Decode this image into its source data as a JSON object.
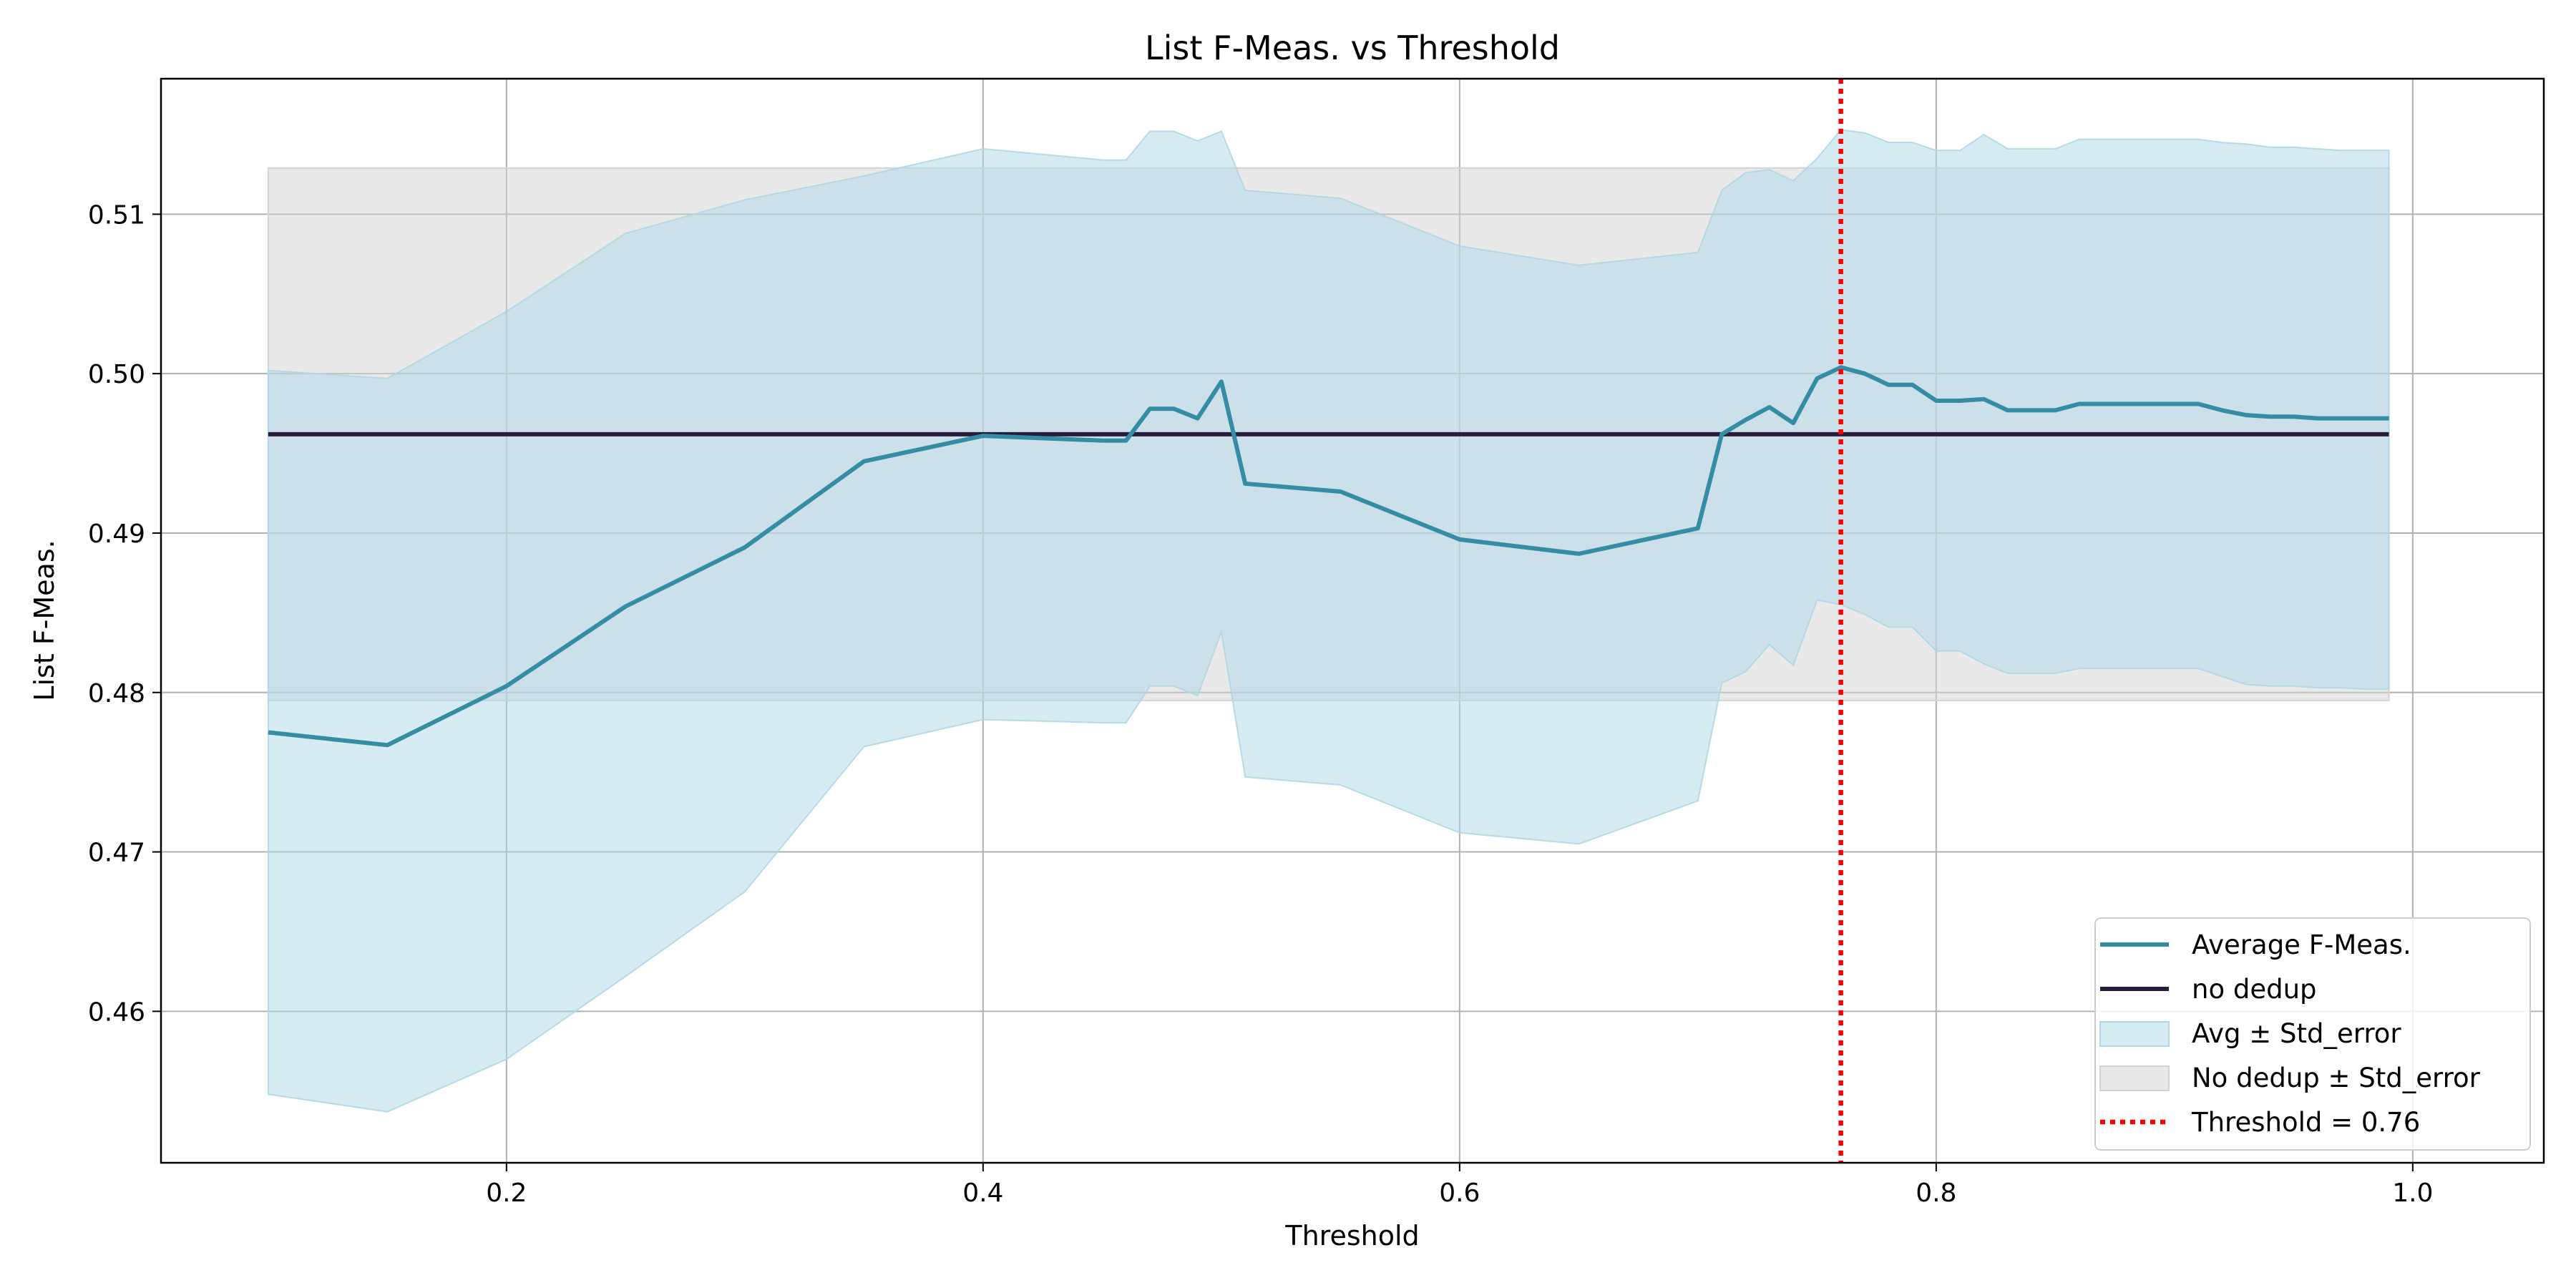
{
  "chart_data": {
    "type": "line",
    "title": "List F-Meas. vs Threshold",
    "xlabel": "Threshold",
    "ylabel": "List F-Meas.",
    "xlim": [
      0.055,
      1.055
    ],
    "ylim": [
      0.4505,
      0.5185
    ],
    "xticks": [
      0.2,
      0.4,
      0.6,
      0.8,
      1.0
    ],
    "xtick_labels": [
      "0.2",
      "0.4",
      "0.6",
      "0.8",
      "1.0"
    ],
    "yticks": [
      0.46,
      0.47,
      0.48,
      0.49,
      0.5,
      0.51
    ],
    "ytick_labels": [
      "0.46",
      "0.47",
      "0.48",
      "0.49",
      "0.50",
      "0.51"
    ],
    "grid": true,
    "legend_position": "lower-right",
    "colors": {
      "average": "#358da4",
      "average_band": "#add8e6",
      "no_dedup": "#281c3d",
      "no_dedup_band": "#d3d3d6",
      "threshold": "#ff0000",
      "grid": "#b0b0b0"
    },
    "x": [
      0.1,
      0.15,
      0.2,
      0.25,
      0.3,
      0.35,
      0.4,
      0.45,
      0.46,
      0.47,
      0.48,
      0.49,
      0.5,
      0.51,
      0.55,
      0.6,
      0.65,
      0.7,
      0.71,
      0.72,
      0.73,
      0.74,
      0.75,
      0.76,
      0.77,
      0.78,
      0.79,
      0.8,
      0.81,
      0.82,
      0.83,
      0.84,
      0.85,
      0.86,
      0.87,
      0.88,
      0.89,
      0.9,
      0.91,
      0.92,
      0.93,
      0.94,
      0.95,
      0.96,
      0.97,
      0.98,
      0.99
    ],
    "series": [
      {
        "name": "Average F-Meas.",
        "values": [
          0.4775,
          0.4767,
          0.4804,
          0.4854,
          0.4891,
          0.4945,
          0.4961,
          0.4958,
          0.4958,
          0.4978,
          0.4978,
          0.4972,
          0.4995,
          0.4931,
          0.4926,
          0.4896,
          0.4887,
          0.4903,
          0.4962,
          0.4971,
          0.4979,
          0.4969,
          0.4997,
          0.5004,
          0.5,
          0.4993,
          0.4993,
          0.4983,
          0.4983,
          0.4984,
          0.4977,
          0.4977,
          0.4977,
          0.4981,
          0.4981,
          0.4981,
          0.4981,
          0.4981,
          0.4981,
          0.4977,
          0.4974,
          0.4973,
          0.4973,
          0.4972,
          0.4972,
          0.4972,
          0.4972
        ],
        "lower": [
          0.4548,
          0.4537,
          0.457,
          0.4622,
          0.4675,
          0.4766,
          0.4783,
          0.4781,
          0.4781,
          0.4804,
          0.4804,
          0.4798,
          0.4838,
          0.4747,
          0.4742,
          0.4712,
          0.4705,
          0.4732,
          0.4806,
          0.4813,
          0.483,
          0.4817,
          0.4858,
          0.4855,
          0.4849,
          0.4841,
          0.4841,
          0.4826,
          0.4826,
          0.4818,
          0.4812,
          0.4812,
          0.4812,
          0.4815,
          0.4815,
          0.4815,
          0.4815,
          0.4815,
          0.4815,
          0.481,
          0.4805,
          0.4804,
          0.4804,
          0.4803,
          0.4803,
          0.4802,
          0.4802
        ],
        "upper": [
          0.5002,
          0.4997,
          0.5039,
          0.5088,
          0.5109,
          0.5124,
          0.5141,
          0.5134,
          0.5134,
          0.5152,
          0.5152,
          0.5146,
          0.5152,
          0.5115,
          0.511,
          0.508,
          0.5068,
          0.5076,
          0.5115,
          0.5126,
          0.5128,
          0.5121,
          0.5135,
          0.5153,
          0.5151,
          0.5145,
          0.5145,
          0.514,
          0.514,
          0.515,
          0.5141,
          0.5141,
          0.5141,
          0.5147,
          0.5147,
          0.5147,
          0.5147,
          0.5147,
          0.5147,
          0.5145,
          0.5144,
          0.5142,
          0.5142,
          0.5141,
          0.514,
          0.514,
          0.514
        ]
      },
      {
        "name": "no dedup",
        "x_range": [
          0.1,
          0.99
        ],
        "value": 0.4962,
        "lower": 0.4795,
        "upper": 0.5129
      }
    ],
    "threshold": 0.76,
    "legend": [
      {
        "key": "average",
        "label": "Average F-Meas."
      },
      {
        "key": "no_dedup",
        "label": "no dedup"
      },
      {
        "key": "average_band",
        "label": "Avg ± Std_error"
      },
      {
        "key": "no_dedup_band",
        "label": "No dedup ± Std_error"
      },
      {
        "key": "threshold",
        "label": "Threshold = 0.76"
      }
    ]
  }
}
